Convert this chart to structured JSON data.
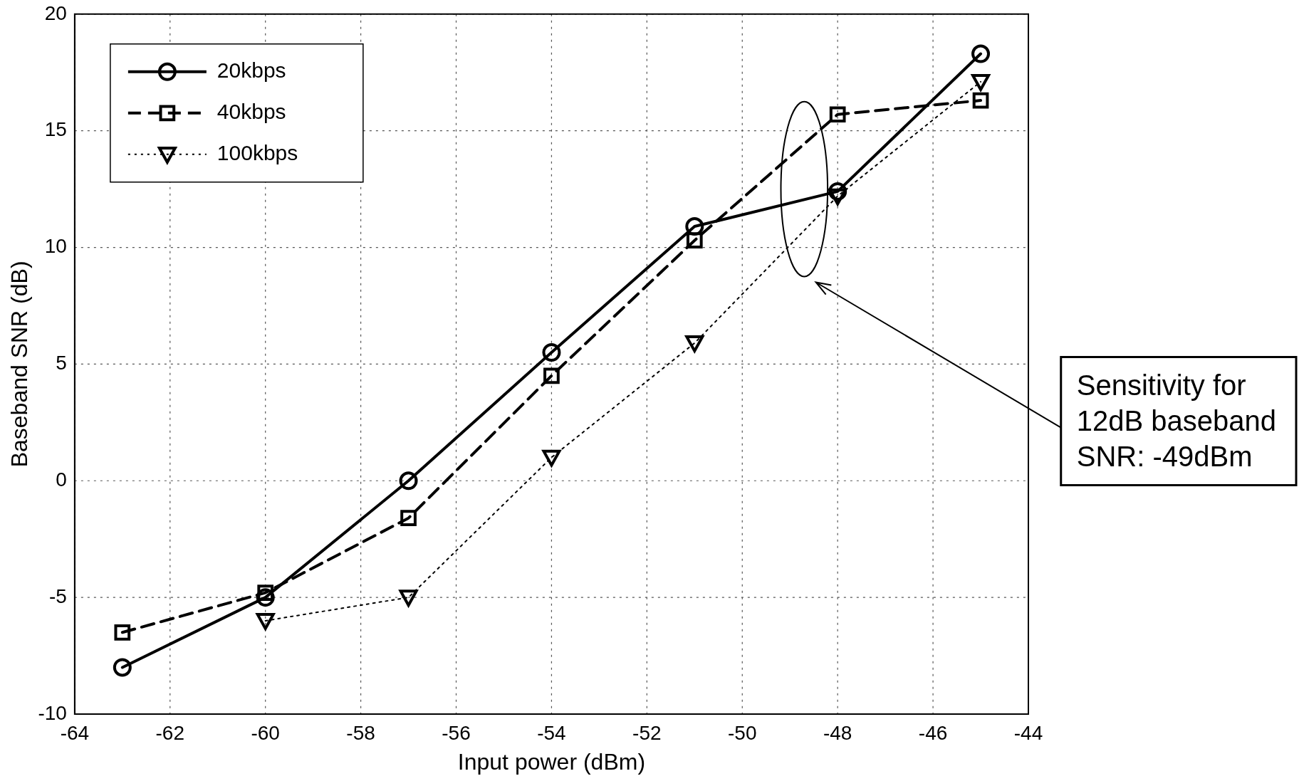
{
  "chart_data": {
    "type": "line",
    "xlabel": "Input power (dBm)",
    "ylabel": "Baseband SNR (dB)",
    "xlim": [
      -64,
      -44
    ],
    "xticks": [
      -64,
      -62,
      -60,
      -58,
      -56,
      -54,
      -52,
      -50,
      -48,
      -46,
      -44
    ],
    "ylim": [
      -10,
      20
    ],
    "yticks": [
      -10,
      -5,
      0,
      5,
      10,
      15,
      20
    ],
    "grid": true,
    "legend": "top left",
    "series": [
      {
        "name": "20kbps",
        "color": "#000000",
        "marker": "circle",
        "line_style": "solid",
        "x": [
          -63,
          -60,
          -57,
          -54,
          -51,
          -48,
          -45
        ],
        "values": [
          -8,
          -5,
          0,
          5.5,
          10.9,
          12.4,
          18.3
        ]
      },
      {
        "name": "40kbps",
        "color": "#000000",
        "marker": "square",
        "line_style": "dashed",
        "x": [
          -63,
          -60,
          -57,
          -54,
          -51,
          -48,
          -45
        ],
        "values": [
          -6.5,
          -4.8,
          -1.6,
          4.5,
          10.3,
          15.7,
          16.3
        ]
      },
      {
        "name": "100kbps",
        "color": "#000000",
        "marker": "triangle",
        "line_style": "dotted",
        "x": [
          -60,
          -57,
          -54,
          -51,
          -48,
          -45
        ],
        "values": [
          -6,
          -5,
          1,
          5.9,
          12.2,
          17.1
        ]
      }
    ],
    "annotations": [
      "Sensitivity for\n12dB baseband\nSNR: -49dBm"
    ]
  }
}
